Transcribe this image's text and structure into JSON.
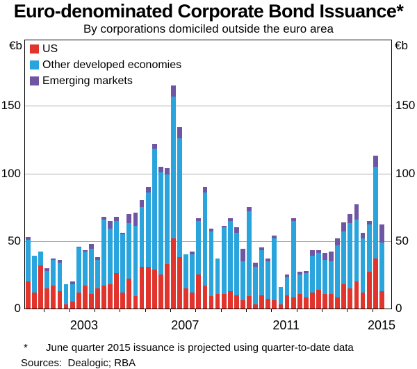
{
  "title": "Euro-denominated Corporate Bond Issuance*",
  "subtitle": "By corporations domiciled outside the euro area",
  "axis": {
    "unit_left": "€b",
    "unit_right": "€b",
    "yticks": [
      0,
      50,
      100,
      150
    ],
    "year_labels": [
      2003,
      2007,
      2011,
      2015
    ]
  },
  "legend": [
    {
      "label": "US",
      "color": "#e0342d"
    },
    {
      "label": "Other developed economies",
      "color": "#29a4dc"
    },
    {
      "label": "Emerging markets",
      "color": "#6e56a3"
    }
  ],
  "footnote": {
    "marker": "*",
    "text": "June quarter 2015 issuance is projected using quarter-to-date data"
  },
  "sources": "Sources:  Dealogic; RBA",
  "chart_data": {
    "type": "bar",
    "stacked": true,
    "title": "Euro-denominated Corporate Bond Issuance",
    "ylabel": "€b",
    "ylim": [
      0,
      200
    ],
    "gridlines": [
      50,
      100,
      150
    ],
    "legend_position": "top-left",
    "x": [
      "2001Q2",
      "2001Q3",
      "2001Q4",
      "2002Q1",
      "2002Q2",
      "2002Q3",
      "2002Q4",
      "2003Q1",
      "2003Q2",
      "2003Q3",
      "2003Q4",
      "2004Q1",
      "2004Q2",
      "2004Q3",
      "2004Q4",
      "2005Q1",
      "2005Q2",
      "2005Q3",
      "2005Q4",
      "2006Q1",
      "2006Q2",
      "2006Q3",
      "2006Q4",
      "2007Q1",
      "2007Q2",
      "2007Q3",
      "2007Q4",
      "2008Q1",
      "2008Q2",
      "2008Q3",
      "2008Q4",
      "2009Q1",
      "2009Q2",
      "2009Q3",
      "2009Q4",
      "2010Q1",
      "2010Q2",
      "2010Q3",
      "2010Q4",
      "2011Q1",
      "2011Q2",
      "2011Q3",
      "2011Q4",
      "2012Q1",
      "2012Q2",
      "2012Q3",
      "2012Q4",
      "2013Q1",
      "2013Q2",
      "2013Q3",
      "2013Q4",
      "2014Q1",
      "2014Q2",
      "2014Q3",
      "2014Q4",
      "2015Q1",
      "2015Q2"
    ],
    "series": [
      {
        "name": "US",
        "color": "#e0342d",
        "values": [
          20,
          12,
          32,
          15,
          17,
          13,
          3,
          5,
          12,
          17,
          11,
          15,
          17,
          18,
          26,
          12,
          22,
          9,
          31,
          31,
          29,
          25,
          33,
          52,
          38,
          15,
          12,
          25,
          17,
          9,
          11,
          11,
          13,
          10,
          6,
          9,
          3,
          10,
          7,
          6,
          3,
          10,
          8,
          11,
          8,
          12,
          14,
          11,
          11,
          8,
          18,
          15,
          20,
          12,
          27,
          37,
          13
        ]
      },
      {
        "name": "Other developed economies",
        "color": "#29a4dc",
        "values": [
          31,
          27,
          10,
          13,
          19,
          21,
          15,
          13,
          33,
          25,
          33,
          21,
          49,
          41,
          39,
          43,
          41,
          52,
          44,
          55,
          89,
          76,
          66,
          105,
          88,
          25,
          28,
          40,
          69,
          48,
          26,
          49,
          52,
          46,
          29,
          63,
          28,
          33,
          28,
          46,
          13,
          13,
          57,
          14,
          18,
          27,
          27,
          25,
          24,
          39,
          39,
          48,
          46,
          40,
          35,
          68,
          36
        ]
      },
      {
        "name": "Emerging markets",
        "color": "#6e56a3",
        "values": [
          2,
          0,
          0,
          2,
          1,
          2,
          0,
          2,
          1,
          1,
          4,
          2,
          2,
          6,
          3,
          1,
          7,
          10,
          5,
          4,
          4,
          4,
          5,
          8,
          8,
          0,
          2,
          2,
          4,
          2,
          0,
          1,
          2,
          4,
          9,
          3,
          3,
          2,
          2,
          2,
          0,
          2,
          2,
          2,
          2,
          4,
          2,
          5,
          7,
          5,
          7,
          7,
          11,
          4,
          3,
          8,
          13
        ]
      }
    ]
  }
}
